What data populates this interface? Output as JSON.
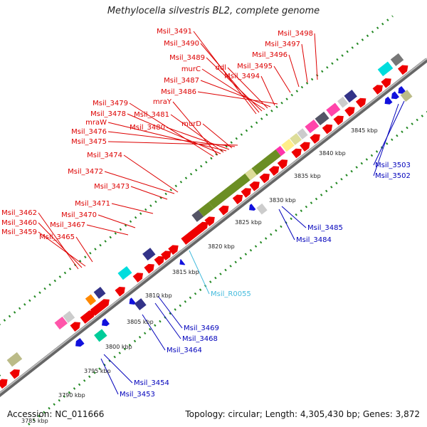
{
  "title": "Methylocella silvestris BL2, complete genome",
  "footer": {
    "accession": "Accession: NC_011666",
    "info": "Topology: circular; Length: 4,305,430 bp; Genes: 3,872"
  },
  "colors": {
    "forward_label": "#dd0000",
    "reverse_label": "#0000bb",
    "rna_label": "#44bbdd",
    "dna_strand": "#888888",
    "gene_forward": "#ee0000",
    "gene_reverse": "#1111dd",
    "dots": "#228822"
  },
  "kbp_ticks": [
    "3790 kbp",
    "3795 kbp",
    "3800 kbp",
    "3805 kbp",
    "3810 kbp",
    "3815 kbp",
    "3820 kbp",
    "3825 kbp",
    "3830 kbp",
    "3835 kbp",
    "3840 kbp",
    "3845 kbp",
    "3785 kbp"
  ],
  "forward_genes": [
    "Msil_3491",
    "Msil_3490",
    "Msil_3489",
    "murC",
    "ddl",
    "Msil_3487",
    "Msil_3494",
    "Msil_3486",
    "Msil_3498",
    "Msil_3497",
    "Msil_3496",
    "Msil_3495",
    "Msil_3479",
    "mraY",
    "Msil_3478",
    "Msil_3481",
    "mraW",
    "Msil_3480",
    "murD",
    "Msil_3476",
    "Msil_3475",
    "Msil_3474",
    "Msil_3472",
    "Msil_3473",
    "Msil_3471",
    "Msil_3470",
    "Msil_3467",
    "Msil_3462",
    "Msil_3460",
    "Msil_3459",
    "Msil_3465"
  ],
  "reverse_genes": [
    "Msil_3503",
    "Msil_3502",
    "Msil_3485",
    "Msil_3484",
    "Msil_3469",
    "Msil_3468",
    "Msil_3464",
    "Msil_3454",
    "Msil_3453"
  ],
  "rna_genes": [
    "Msil_R0055"
  ]
}
